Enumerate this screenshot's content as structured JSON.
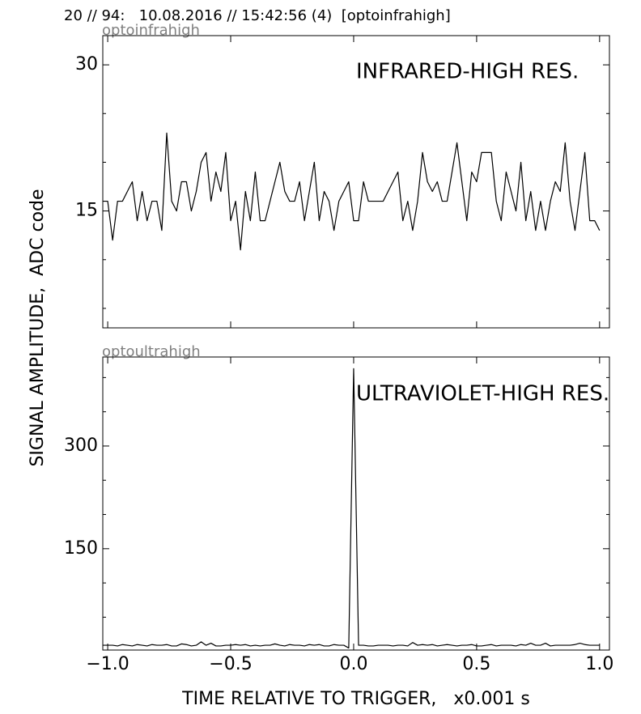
{
  "header": "20 // 94:   10.08.2016 // 15:42:56 (4)  [optoinfrahigh]",
  "ylabel": "SIGNAL AMPLITUDE,  ADC code",
  "xlabel": "TIME RELATIVE TO TRIGGER,   x0.001 s",
  "chart_data": [
    {
      "type": "line",
      "panel_label": "optoinfrahigh",
      "annotation": "INFRARED-HIGH RES.",
      "color": "#000000",
      "x": [
        -1.02,
        -1.0,
        -0.98,
        -0.96,
        -0.94,
        -0.92,
        -0.9,
        -0.88,
        -0.86,
        -0.84,
        -0.82,
        -0.8,
        -0.78,
        -0.76,
        -0.74,
        -0.72,
        -0.7,
        -0.68,
        -0.66,
        -0.64,
        -0.62,
        -0.6,
        -0.58,
        -0.56,
        -0.54,
        -0.52,
        -0.5,
        -0.48,
        -0.46,
        -0.44,
        -0.42,
        -0.4,
        -0.38,
        -0.36,
        -0.34,
        -0.32,
        -0.3,
        -0.28,
        -0.26,
        -0.24,
        -0.22,
        -0.2,
        -0.18,
        -0.16,
        -0.14,
        -0.12,
        -0.1,
        -0.08,
        -0.06,
        -0.04,
        -0.02,
        0.0,
        0.02,
        0.04,
        0.06,
        0.08,
        0.1,
        0.12,
        0.14,
        0.16,
        0.18,
        0.2,
        0.22,
        0.24,
        0.26,
        0.28,
        0.3,
        0.32,
        0.34,
        0.36,
        0.38,
        0.4,
        0.42,
        0.44,
        0.46,
        0.48,
        0.5,
        0.52,
        0.54,
        0.56,
        0.58,
        0.6,
        0.62,
        0.64,
        0.66,
        0.68,
        0.7,
        0.72,
        0.74,
        0.76,
        0.78,
        0.8,
        0.82,
        0.84,
        0.86,
        0.88,
        0.9,
        0.92,
        0.94,
        0.96,
        0.98,
        1.0
      ],
      "values": [
        16,
        16,
        12,
        16,
        16,
        17,
        18,
        14,
        17,
        14,
        16,
        16,
        13,
        23,
        16,
        15,
        18,
        18,
        15,
        17,
        20,
        21,
        16,
        19,
        17,
        21,
        14,
        16,
        11,
        17,
        14,
        19,
        14,
        14,
        16,
        18,
        20,
        17,
        16,
        16,
        18,
        14,
        17,
        20,
        14,
        17,
        16,
        13,
        16,
        17,
        18,
        14,
        14,
        18,
        16,
        16,
        16,
        16,
        17,
        18,
        19,
        14,
        16,
        13,
        16,
        21,
        18,
        17,
        18,
        16,
        16,
        19,
        22,
        18,
        14,
        19,
        18,
        21,
        21,
        21,
        16,
        14,
        19,
        17,
        15,
        20,
        14,
        17,
        13,
        16,
        13,
        16,
        18,
        17,
        22,
        16,
        13,
        17,
        21,
        14,
        14,
        13
      ],
      "xlim": [
        -1.02,
        1.04
      ],
      "ylim": [
        3,
        33
      ],
      "xticks": [
        -1,
        -0.5,
        0,
        0.5,
        1
      ],
      "show_xtick_labels": false,
      "yticks": [
        15,
        30
      ],
      "yminor": [
        5,
        10,
        20,
        25
      ]
    },
    {
      "type": "line",
      "panel_label": "optoultrahigh",
      "annotation": "ULTRAVIOLET-HIGH RES.",
      "color": "#000000",
      "x": [
        -1.02,
        -1.0,
        -0.98,
        -0.96,
        -0.94,
        -0.92,
        -0.9,
        -0.88,
        -0.86,
        -0.84,
        -0.82,
        -0.8,
        -0.78,
        -0.76,
        -0.74,
        -0.72,
        -0.7,
        -0.68,
        -0.66,
        -0.64,
        -0.62,
        -0.6,
        -0.58,
        -0.56,
        -0.54,
        -0.52,
        -0.5,
        -0.48,
        -0.46,
        -0.44,
        -0.42,
        -0.4,
        -0.38,
        -0.36,
        -0.34,
        -0.32,
        -0.3,
        -0.28,
        -0.26,
        -0.24,
        -0.22,
        -0.2,
        -0.18,
        -0.16,
        -0.14,
        -0.12,
        -0.1,
        -0.08,
        -0.06,
        -0.04,
        -0.02,
        0.0,
        0.02,
        0.04,
        0.06,
        0.08,
        0.1,
        0.12,
        0.14,
        0.16,
        0.18,
        0.2,
        0.22,
        0.24,
        0.26,
        0.28,
        0.3,
        0.32,
        0.34,
        0.36,
        0.38,
        0.4,
        0.42,
        0.44,
        0.46,
        0.48,
        0.5,
        0.52,
        0.54,
        0.56,
        0.58,
        0.6,
        0.62,
        0.64,
        0.66,
        0.68,
        0.7,
        0.72,
        0.74,
        0.76,
        0.78,
        0.8,
        0.82,
        0.84,
        0.86,
        0.88,
        0.9,
        0.92,
        0.94,
        0.96,
        0.98,
        1.0
      ],
      "values": [
        9,
        9,
        9,
        8,
        10,
        9,
        8,
        10,
        9,
        8,
        10,
        9,
        9,
        10,
        8,
        8,
        11,
        10,
        8,
        9,
        14,
        9,
        12,
        8,
        8,
        9,
        9,
        10,
        9,
        10,
        8,
        9,
        8,
        9,
        9,
        11,
        9,
        8,
        10,
        9,
        9,
        8,
        10,
        9,
        10,
        8,
        8,
        10,
        9,
        9,
        5,
        413,
        9,
        9,
        8,
        8,
        9,
        9,
        9,
        8,
        9,
        9,
        8,
        13,
        9,
        10,
        9,
        10,
        8,
        9,
        10,
        9,
        8,
        9,
        9,
        10,
        8,
        8,
        9,
        10,
        8,
        9,
        9,
        9,
        8,
        10,
        9,
        12,
        9,
        9,
        12,
        8,
        9,
        9,
        9,
        9,
        10,
        12,
        10,
        9,
        9,
        9
      ],
      "xlim": [
        -1.02,
        1.04
      ],
      "ylim": [
        2,
        430
      ],
      "xticks": [
        {
          "value": -1,
          "label": "−1.0"
        },
        {
          "value": -0.5,
          "label": "−0.5"
        },
        {
          "value": 0,
          "label": "0.0"
        },
        {
          "value": 0.5,
          "label": "0.5"
        },
        {
          "value": 1,
          "label": "1.0"
        }
      ],
      "show_xtick_labels": true,
      "yticks": [
        150,
        300
      ],
      "yminor": [
        50,
        100,
        200,
        250,
        350,
        400
      ]
    }
  ]
}
